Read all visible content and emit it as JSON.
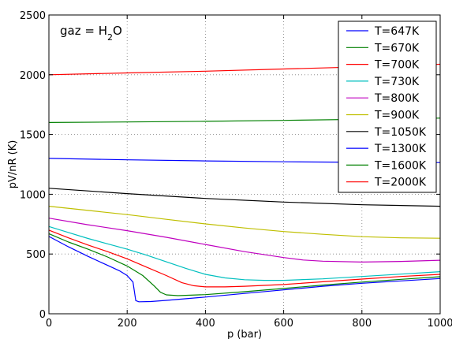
{
  "chart_data": {
    "type": "line",
    "annotation": {
      "prefix": "gaz = H",
      "subscript": "2",
      "suffix": "O"
    },
    "xlabel": "p (bar)",
    "ylabel": "pV/nR (K)",
    "xlim": [
      0,
      1000
    ],
    "ylim": [
      0,
      2500
    ],
    "xticks": [
      "0",
      "200",
      "400",
      "600",
      "800",
      "1000"
    ],
    "yticks": [
      "0",
      "500",
      "1000",
      "1500",
      "2000",
      "2500"
    ],
    "grid": true,
    "legend_position": "top-right",
    "series": [
      {
        "name": "T=647K",
        "color": "#0000ff",
        "points": [
          [
            0,
            647
          ],
          [
            50,
            560
          ],
          [
            100,
            480
          ],
          [
            150,
            405
          ],
          [
            180,
            360
          ],
          [
            200,
            320
          ],
          [
            215,
            265
          ],
          [
            222,
            110
          ],
          [
            230,
            100
          ],
          [
            260,
            102
          ],
          [
            300,
            112
          ],
          [
            400,
            140
          ],
          [
            500,
            170
          ],
          [
            600,
            200
          ],
          [
            700,
            230
          ],
          [
            800,
            255
          ],
          [
            900,
            275
          ],
          [
            1000,
            295
          ]
        ]
      },
      {
        "name": "T=670K",
        "color": "#008000",
        "points": [
          [
            0,
            670
          ],
          [
            50,
            600
          ],
          [
            100,
            540
          ],
          [
            150,
            475
          ],
          [
            200,
            400
          ],
          [
            240,
            320
          ],
          [
            270,
            230
          ],
          [
            285,
            180
          ],
          [
            300,
            158
          ],
          [
            330,
            152
          ],
          [
            400,
            160
          ],
          [
            500,
            185
          ],
          [
            600,
            212
          ],
          [
            700,
            240
          ],
          [
            800,
            265
          ],
          [
            900,
            288
          ],
          [
            1000,
            310
          ]
        ]
      },
      {
        "name": "T=700K",
        "color": "#ff0000",
        "points": [
          [
            0,
            700
          ],
          [
            50,
            635
          ],
          [
            100,
            575
          ],
          [
            150,
            520
          ],
          [
            200,
            460
          ],
          [
            250,
            390
          ],
          [
            300,
            320
          ],
          [
            340,
            260
          ],
          [
            370,
            235
          ],
          [
            400,
            225
          ],
          [
            450,
            225
          ],
          [
            500,
            230
          ],
          [
            600,
            245
          ],
          [
            700,
            268
          ],
          [
            800,
            290
          ],
          [
            900,
            312
          ],
          [
            1000,
            330
          ]
        ]
      },
      {
        "name": "T=730K",
        "color": "#00bfbf",
        "points": [
          [
            0,
            730
          ],
          [
            50,
            680
          ],
          [
            100,
            630
          ],
          [
            150,
            585
          ],
          [
            200,
            540
          ],
          [
            250,
            490
          ],
          [
            300,
            435
          ],
          [
            350,
            380
          ],
          [
            400,
            330
          ],
          [
            450,
            300
          ],
          [
            500,
            285
          ],
          [
            550,
            280
          ],
          [
            600,
            280
          ],
          [
            700,
            292
          ],
          [
            800,
            312
          ],
          [
            900,
            332
          ],
          [
            1000,
            352
          ]
        ]
      },
      {
        "name": "T=800K",
        "color": "#bf00bf",
        "points": [
          [
            0,
            800
          ],
          [
            100,
            745
          ],
          [
            200,
            695
          ],
          [
            300,
            640
          ],
          [
            400,
            580
          ],
          [
            500,
            520
          ],
          [
            600,
            470
          ],
          [
            650,
            450
          ],
          [
            700,
            440
          ],
          [
            800,
            433
          ],
          [
            900,
            438
          ],
          [
            1000,
            448
          ]
        ]
      },
      {
        "name": "T=900K",
        "color": "#bfbf00",
        "points": [
          [
            0,
            900
          ],
          [
            100,
            865
          ],
          [
            200,
            830
          ],
          [
            300,
            790
          ],
          [
            400,
            752
          ],
          [
            500,
            718
          ],
          [
            600,
            688
          ],
          [
            700,
            665
          ],
          [
            800,
            645
          ],
          [
            900,
            635
          ],
          [
            1000,
            632
          ]
        ]
      },
      {
        "name": "T=1050K",
        "color": "#000000",
        "points": [
          [
            0,
            1050
          ],
          [
            200,
            1005
          ],
          [
            400,
            965
          ],
          [
            600,
            935
          ],
          [
            800,
            912
          ],
          [
            1000,
            900
          ]
        ]
      },
      {
        "name": "T=1300K",
        "color": "#0000ff",
        "points": [
          [
            0,
            1300
          ],
          [
            200,
            1288
          ],
          [
            400,
            1279
          ],
          [
            600,
            1272
          ],
          [
            800,
            1267
          ],
          [
            1000,
            1265
          ]
        ]
      },
      {
        "name": "T=1600K",
        "color": "#008000",
        "points": [
          [
            0,
            1600
          ],
          [
            200,
            1605
          ],
          [
            400,
            1610
          ],
          [
            600,
            1618
          ],
          [
            800,
            1627
          ],
          [
            1000,
            1637
          ]
        ]
      },
      {
        "name": "T=2000K",
        "color": "#ff0000",
        "points": [
          [
            0,
            2000
          ],
          [
            200,
            2015
          ],
          [
            400,
            2030
          ],
          [
            600,
            2048
          ],
          [
            800,
            2066
          ],
          [
            1000,
            2088
          ]
        ]
      }
    ]
  }
}
